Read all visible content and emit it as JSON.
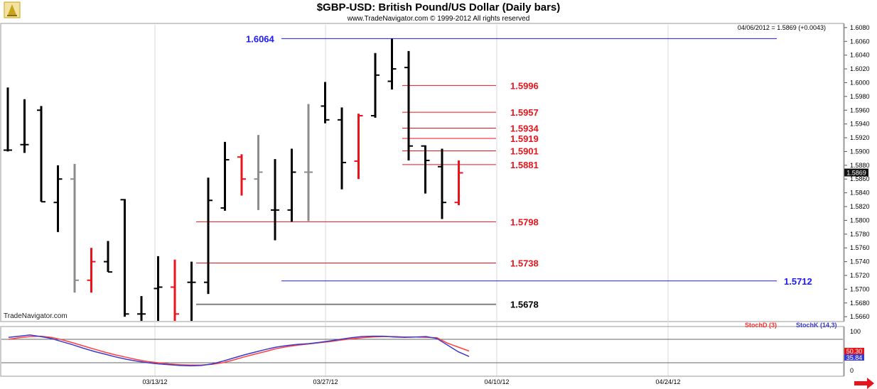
{
  "header": {
    "title": "$GBP-USD:  British Pound/US Dollar  (Daily bars)",
    "subtitle": "www.TradeNavigator.com © 1999-2012 All rights reserved",
    "last_info": "04/06/2012 = 1.5869 (+0.0043)",
    "last_price_tag": "1.5869",
    "watermark": "TradeNavigator.com"
  },
  "colors": {
    "up": "#000000",
    "down_red": "#e8141b",
    "neutral_gray": "#8c8c8c",
    "level_red": "#e8141b",
    "level_blue": "#1a1aff",
    "level_black": "#808080",
    "stoch_d": "#ff4040",
    "stoch_k": "#3a3acc"
  },
  "chart_data": [
    {
      "type": "ohlc",
      "title": "$GBP-USD:  British Pound/US Dollar  (Daily bars)",
      "ylim": [
        1.5654,
        1.6084
      ],
      "y_ticks": [
        "1.6080",
        "1.6060",
        "1.6040",
        "1.6020",
        "1.6000",
        "1.5980",
        "1.5960",
        "1.5940",
        "1.5920",
        "1.5900",
        "1.5880",
        "1.5860",
        "1.5840",
        "1.5820",
        "1.5800",
        "1.5780",
        "1.5760",
        "1.5740",
        "1.5720",
        "1.5700",
        "1.5680",
        "1.5660"
      ],
      "x_ticks": [
        "03/13/12",
        "03/27/12",
        "04/10/12",
        "04/24/12"
      ],
      "bars": [
        {
          "o": 1.5902,
          "h": 1.5993,
          "l": 1.59,
          "c": 1.5902,
          "color": "black"
        },
        {
          "o": 1.591,
          "h": 1.5976,
          "l": 1.5898,
          "c": 1.591,
          "color": "black"
        },
        {
          "o": 1.596,
          "h": 1.5966,
          "l": 1.5827,
          "c": 1.5827,
          "color": "black"
        },
        {
          "o": 1.5826,
          "h": 1.588,
          "l": 1.5783,
          "c": 1.586,
          "color": "black"
        },
        {
          "o": 1.586,
          "h": 1.5882,
          "l": 1.5695,
          "c": 1.5713,
          "color": "gray"
        },
        {
          "o": 1.5713,
          "h": 1.576,
          "l": 1.5695,
          "c": 1.574,
          "color": "red"
        },
        {
          "o": 1.574,
          "h": 1.577,
          "l": 1.5725,
          "c": 1.5725,
          "color": "black"
        },
        {
          "o": 1.583,
          "h": 1.5831,
          "l": 1.566,
          "c": 1.5664,
          "color": "black"
        },
        {
          "o": 1.5664,
          "h": 1.569,
          "l": 1.5654,
          "c": 1.5664,
          "color": "black"
        },
        {
          "o": 1.5701,
          "h": 1.5748,
          "l": 1.5654,
          "c": 1.5703,
          "color": "black"
        },
        {
          "o": 1.5703,
          "h": 1.5743,
          "l": 1.5654,
          "c": 1.5664,
          "color": "red"
        },
        {
          "o": 1.571,
          "h": 1.574,
          "l": 1.5654,
          "c": 1.571,
          "color": "black"
        },
        {
          "o": 1.571,
          "h": 1.5862,
          "l": 1.5693,
          "c": 1.5829,
          "color": "black"
        },
        {
          "o": 1.5818,
          "h": 1.5914,
          "l": 1.5814,
          "c": 1.5888,
          "color": "black"
        },
        {
          "o": 1.5892,
          "h": 1.5896,
          "l": 1.5836,
          "c": 1.586,
          "color": "red"
        },
        {
          "o": 1.586,
          "h": 1.5924,
          "l": 1.5815,
          "c": 1.587,
          "color": "gray"
        },
        {
          "o": 1.5815,
          "h": 1.5889,
          "l": 1.5771,
          "c": 1.5815,
          "color": "black"
        },
        {
          "o": 1.5815,
          "h": 1.5904,
          "l": 1.5798,
          "c": 1.587,
          "color": "black"
        },
        {
          "o": 1.587,
          "h": 1.5969,
          "l": 1.5799,
          "c": 1.587,
          "color": "gray"
        },
        {
          "o": 1.5966,
          "h": 1.6001,
          "l": 1.5941,
          "c": 1.5946,
          "color": "black"
        },
        {
          "o": 1.5946,
          "h": 1.5964,
          "l": 1.5845,
          "c": 1.5884,
          "color": "black"
        },
        {
          "o": 1.5886,
          "h": 1.5955,
          "l": 1.586,
          "c": 1.5952,
          "color": "red"
        },
        {
          "o": 1.5952,
          "h": 1.6043,
          "l": 1.5949,
          "c": 1.6011,
          "color": "black"
        },
        {
          "o": 1.6002,
          "h": 1.6064,
          "l": 1.599,
          "c": 1.602,
          "color": "black"
        },
        {
          "o": 1.6022,
          "h": 1.6046,
          "l": 1.5887,
          "c": 1.5908,
          "color": "black"
        },
        {
          "o": 1.5908,
          "h": 1.5909,
          "l": 1.5839,
          "c": 1.5887,
          "color": "black"
        },
        {
          "o": 1.5878,
          "h": 1.5904,
          "l": 1.5802,
          "c": 1.5826,
          "color": "black"
        },
        {
          "o": 1.5826,
          "h": 1.5887,
          "l": 1.5822,
          "c": 1.5869,
          "color": "red"
        }
      ],
      "levels": [
        {
          "value": 1.6064,
          "label": "1.6064",
          "color": "blue"
        },
        {
          "value": 1.5996,
          "label": "1.5996",
          "color": "red"
        },
        {
          "value": 1.5957,
          "label": "1.5957",
          "color": "red"
        },
        {
          "value": 1.5934,
          "label": "1.5934",
          "color": "red"
        },
        {
          "value": 1.5919,
          "label": "1.5919",
          "color": "red"
        },
        {
          "value": 1.5901,
          "label": "1.5901",
          "color": "red"
        },
        {
          "value": 1.5881,
          "label": "1.5881",
          "color": "red"
        },
        {
          "value": 1.5798,
          "label": "1.5798",
          "color": "red"
        },
        {
          "value": 1.5738,
          "label": "1.5738",
          "color": "red"
        },
        {
          "value": 1.5712,
          "label": "1.5712",
          "color": "blue"
        },
        {
          "value": 1.5678,
          "label": "1.5678",
          "color": "black"
        }
      ]
    },
    {
      "type": "line",
      "title": "",
      "legend": [
        "StochD (3)",
        "StochK (14,3)"
      ],
      "ylim": [
        0,
        100
      ],
      "y_ticks": [
        "100",
        "0"
      ],
      "reference_lines": [
        80,
        20
      ],
      "right_tags": [
        "50.30",
        "35.84"
      ],
      "series": [
        {
          "name": "StochD (3)",
          "values": [
            80,
            84,
            87,
            88,
            85,
            79,
            71,
            63,
            55,
            47,
            40,
            34,
            28,
            23,
            20,
            17,
            15,
            14,
            14,
            16,
            20,
            27,
            35,
            42,
            49,
            56,
            61,
            65,
            68,
            71,
            74,
            78,
            81,
            84,
            86,
            87,
            87,
            86,
            86,
            85,
            84,
            70,
            60,
            50
          ]
        },
        {
          "name": "StochK (14,3)",
          "values": [
            85,
            88,
            91,
            87,
            82,
            74,
            66,
            57,
            49,
            42,
            35,
            29,
            24,
            20,
            17,
            15,
            13,
            12,
            13,
            17,
            24,
            32,
            40,
            47,
            54,
            60,
            64,
            67,
            69,
            72,
            76,
            80,
            84,
            87,
            88,
            88,
            86,
            85,
            86,
            87,
            82,
            65,
            48,
            36
          ]
        }
      ]
    }
  ]
}
